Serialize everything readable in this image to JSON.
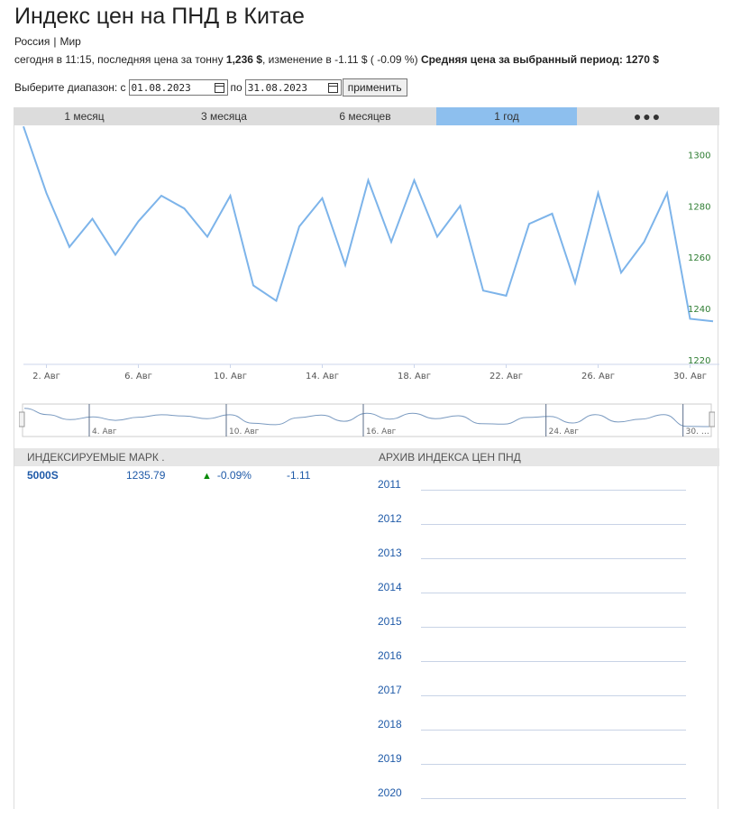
{
  "page": {
    "title": "Индекс цен на ПНД в Китае",
    "breadcrumb": [
      "Россия",
      "Мир"
    ],
    "breadcrumb_sep": "|",
    "summary_prefix": "сегодня в 11:15, последняя цена за тонну",
    "last_price": "1,236 $",
    "change_text": ", изменение в -1.11 $ ( -0.09 %)",
    "avg_label": "Средняя цена за выбранный период:",
    "avg_value": "1270 $"
  },
  "range": {
    "label": "Выберите диапазон: с",
    "from": "01.08.2023",
    "to_label": "по",
    "to": "31.08.2023",
    "apply": "применить"
  },
  "tabs": [
    {
      "label": "1 месяц",
      "active": false
    },
    {
      "label": "3 месяца",
      "active": false
    },
    {
      "label": "6 месяцев",
      "active": false
    },
    {
      "label": "1 год",
      "active": true
    },
    {
      "label": "●●●",
      "active": false
    }
  ],
  "chart_data": {
    "type": "line",
    "series": [
      {
        "values": [
          1311,
          1285,
          1264,
          1275,
          1261,
          1274,
          1284,
          1279,
          1268,
          1284,
          1249,
          1243,
          1272,
          1283,
          1257,
          1290,
          1266,
          1290,
          1268,
          1280,
          1247,
          1245,
          1273,
          1277,
          1250,
          1285,
          1254,
          1266,
          1285,
          1236,
          1235
        ]
      }
    ],
    "x": [
      "1. Авг",
      "2. Авг",
      "3. Авг",
      "4. Авг",
      "5. Авг",
      "6. Авг",
      "7. Авг",
      "8. Авг",
      "9. Авг",
      "10. Авг",
      "11. Авг",
      "12. Авг",
      "13. Авг",
      "14. Авг",
      "15. Авг",
      "16. Авг",
      "17. Авг",
      "18. Авг",
      "19. Авг",
      "20. Авг",
      "21. Авг",
      "22. Авг",
      "23. Авг",
      "24. Авг",
      "25. Авг",
      "26. Авг",
      "27. Авг",
      "28. Авг",
      "29. Авг",
      "30. Авг",
      "31. Авг"
    ],
    "x_tick_labels": [
      "2. Авг",
      "6. Авг",
      "10. Авг",
      "14. Авг",
      "18. Авг",
      "22. Авг",
      "26. Авг",
      "30. Авг"
    ],
    "y_tick_labels": [
      "1220",
      "1240",
      "1260",
      "1280",
      "1300"
    ],
    "ylim": [
      1220,
      1310
    ],
    "line_color": "#7db4ea",
    "ytick_color": "#2e7d32",
    "grid": false,
    "navigator_labels": [
      "4. Авг",
      "10. Авг",
      "16. Авг",
      "24. Авг",
      "30. …"
    ]
  },
  "indexed": {
    "header": "ИНДЕКСИРУЕМЫЕ МАРК .",
    "rows": [
      {
        "symbol": "5000S",
        "price": "1235.79",
        "pct": "-0.09%",
        "change": "-1.11"
      }
    ]
  },
  "archive": {
    "header": "АРХИВ ИНДЕКСА ЦЕН ПНД",
    "years": [
      "2011",
      "2012",
      "2013",
      "2014",
      "2015",
      "2016",
      "2017",
      "2018",
      "2019",
      "2020"
    ]
  },
  "colors": {
    "accent": "#8dbfee",
    "link": "#1f5aa8",
    "up": "#0a8a0a"
  }
}
